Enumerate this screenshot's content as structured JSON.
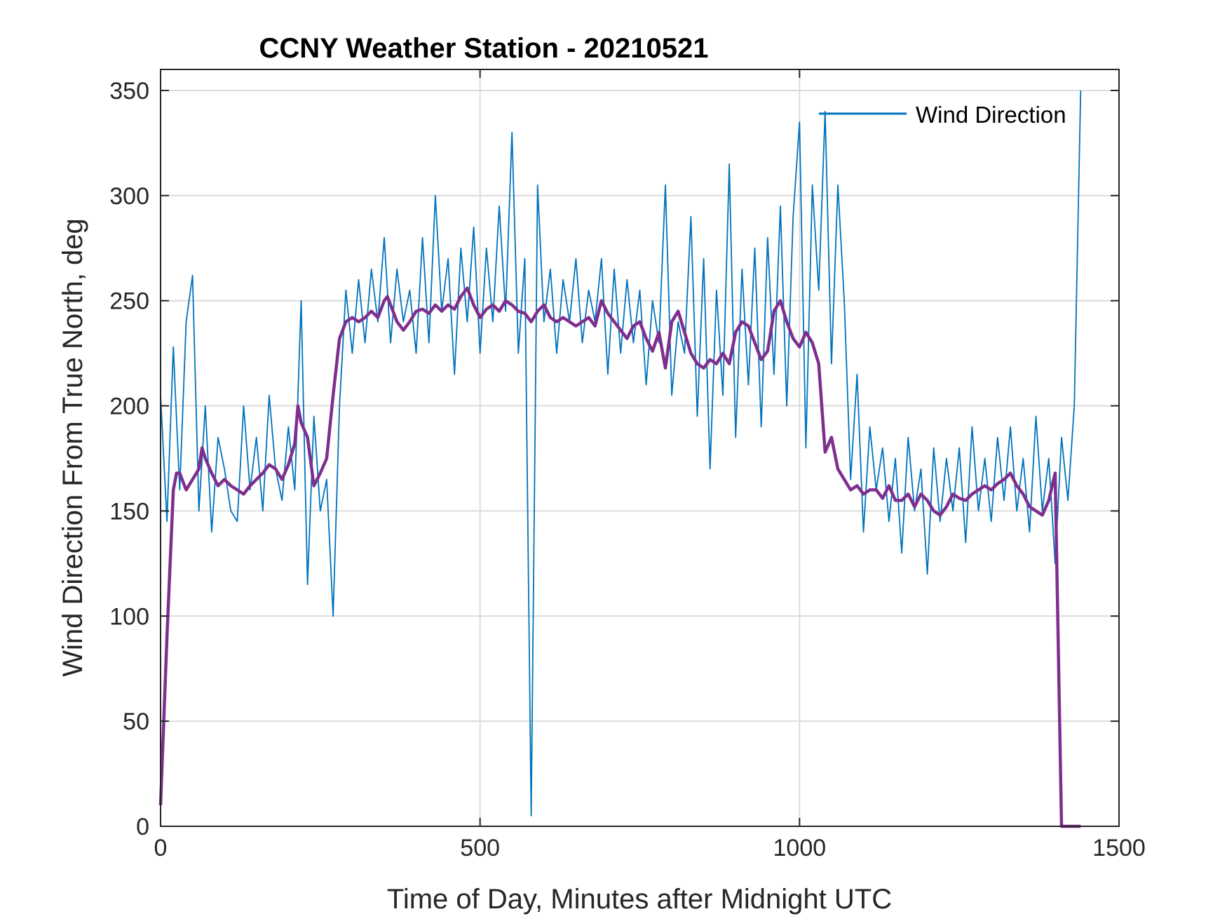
{
  "chart_data": {
    "type": "line",
    "title": "CCNY Weather Station - 20210521",
    "xlabel": "Time of Day, Minutes after Midnight UTC",
    "ylabel": "Wind Direction From True North, deg",
    "xlim": [
      0,
      1500
    ],
    "ylim": [
      0,
      360
    ],
    "xticks": [
      0,
      500,
      1000,
      1500
    ],
    "yticks": [
      0,
      50,
      100,
      150,
      200,
      250,
      300,
      350
    ],
    "grid": true,
    "legend_position": "top-right",
    "legend": [
      "Wind Direction"
    ],
    "series": [
      {
        "name": "Wind Direction",
        "color": "#0072BD",
        "style": "raw",
        "x": [
          0,
          10,
          20,
          30,
          40,
          50,
          60,
          70,
          80,
          90,
          100,
          110,
          120,
          130,
          140,
          150,
          160,
          170,
          180,
          190,
          200,
          210,
          220,
          230,
          240,
          250,
          260,
          270,
          280,
          290,
          300,
          310,
          320,
          330,
          340,
          350,
          360,
          370,
          380,
          390,
          400,
          410,
          420,
          430,
          440,
          450,
          460,
          470,
          480,
          490,
          500,
          510,
          520,
          530,
          540,
          550,
          560,
          570,
          580,
          590,
          600,
          610,
          620,
          630,
          640,
          650,
          660,
          670,
          680,
          690,
          700,
          710,
          720,
          730,
          740,
          750,
          760,
          770,
          780,
          790,
          800,
          810,
          820,
          830,
          840,
          850,
          860,
          870,
          880,
          890,
          900,
          910,
          920,
          930,
          940,
          950,
          960,
          970,
          980,
          990,
          1000,
          1010,
          1020,
          1030,
          1040,
          1050,
          1060,
          1070,
          1080,
          1090,
          1100,
          1110,
          1120,
          1130,
          1140,
          1150,
          1160,
          1170,
          1180,
          1190,
          1200,
          1210,
          1220,
          1230,
          1240,
          1250,
          1260,
          1270,
          1280,
          1290,
          1300,
          1310,
          1320,
          1330,
          1340,
          1350,
          1360,
          1370,
          1380,
          1390,
          1400,
          1410,
          1420,
          1430,
          1440
        ],
        "y": [
          205,
          145,
          228,
          160,
          240,
          262,
          150,
          200,
          140,
          185,
          170,
          150,
          145,
          200,
          160,
          185,
          150,
          205,
          170,
          155,
          190,
          160,
          250,
          115,
          195,
          150,
          165,
          100,
          200,
          255,
          225,
          260,
          230,
          265,
          240,
          280,
          230,
          265,
          240,
          255,
          225,
          280,
          230,
          300,
          245,
          270,
          215,
          275,
          240,
          285,
          225,
          275,
          240,
          295,
          245,
          330,
          225,
          270,
          5,
          305,
          240,
          265,
          225,
          260,
          240,
          270,
          230,
          255,
          240,
          270,
          215,
          265,
          225,
          260,
          230,
          255,
          210,
          250,
          230,
          305,
          205,
          240,
          225,
          290,
          195,
          270,
          170,
          255,
          205,
          315,
          185,
          265,
          210,
          275,
          190,
          280,
          215,
          295,
          200,
          290,
          335,
          180,
          305,
          255,
          340,
          220,
          305,
          250,
          165,
          215,
          140,
          190,
          160,
          180,
          145,
          175,
          130,
          185,
          150,
          170,
          120,
          180,
          145,
          175,
          150,
          180,
          135,
          190,
          150,
          175,
          145,
          185,
          155,
          190,
          150,
          175,
          140,
          195,
          150,
          175,
          125,
          185,
          155,
          200,
          350
        ]
      },
      {
        "name": "",
        "color": "#7E2F8E",
        "style": "smoothed",
        "x": [
          0,
          10,
          20,
          25,
          30,
          40,
          50,
          60,
          65,
          70,
          80,
          90,
          100,
          110,
          120,
          130,
          140,
          150,
          160,
          170,
          180,
          190,
          200,
          210,
          215,
          220,
          230,
          240,
          250,
          260,
          270,
          280,
          290,
          300,
          310,
          320,
          330,
          340,
          350,
          355,
          360,
          370,
          380,
          390,
          400,
          410,
          420,
          430,
          440,
          450,
          460,
          470,
          480,
          490,
          500,
          510,
          520,
          530,
          540,
          550,
          560,
          570,
          580,
          590,
          600,
          610,
          620,
          630,
          640,
          650,
          660,
          670,
          680,
          690,
          700,
          710,
          720,
          730,
          740,
          750,
          760,
          770,
          780,
          790,
          800,
          810,
          820,
          830,
          840,
          850,
          860,
          870,
          880,
          890,
          900,
          910,
          920,
          930,
          940,
          950,
          960,
          970,
          980,
          990,
          1000,
          1010,
          1020,
          1030,
          1040,
          1050,
          1060,
          1070,
          1080,
          1090,
          1100,
          1110,
          1120,
          1130,
          1140,
          1150,
          1160,
          1170,
          1180,
          1190,
          1200,
          1210,
          1220,
          1230,
          1240,
          1250,
          1260,
          1270,
          1280,
          1290,
          1300,
          1310,
          1320,
          1330,
          1340,
          1350,
          1360,
          1370,
          1380,
          1390,
          1400,
          1410,
          1420,
          1430,
          1440
        ],
        "y": [
          10,
          90,
          160,
          168,
          168,
          160,
          165,
          170,
          180,
          175,
          168,
          162,
          165,
          162,
          160,
          158,
          162,
          165,
          168,
          172,
          170,
          165,
          172,
          182,
          200,
          192,
          185,
          162,
          168,
          175,
          205,
          232,
          240,
          242,
          240,
          242,
          245,
          242,
          250,
          252,
          248,
          240,
          236,
          240,
          245,
          246,
          244,
          248,
          245,
          248,
          246,
          252,
          256,
          248,
          242,
          246,
          248,
          245,
          250,
          248,
          245,
          244,
          240,
          245,
          248,
          242,
          240,
          242,
          240,
          238,
          240,
          242,
          238,
          250,
          244,
          240,
          236,
          232,
          238,
          240,
          232,
          226,
          235,
          218,
          240,
          245,
          235,
          225,
          220,
          218,
          222,
          220,
          225,
          220,
          235,
          240,
          238,
          230,
          222,
          226,
          245,
          250,
          240,
          232,
          228,
          235,
          230,
          220,
          178,
          185,
          170,
          165,
          160,
          162,
          158,
          160,
          160,
          156,
          162,
          155,
          155,
          158,
          152,
          158,
          155,
          150,
          148,
          152,
          158,
          156,
          155,
          158,
          160,
          162,
          160,
          163,
          165,
          168,
          162,
          158,
          152,
          150,
          148,
          155,
          168,
          0,
          0,
          0,
          0
        ]
      }
    ]
  }
}
